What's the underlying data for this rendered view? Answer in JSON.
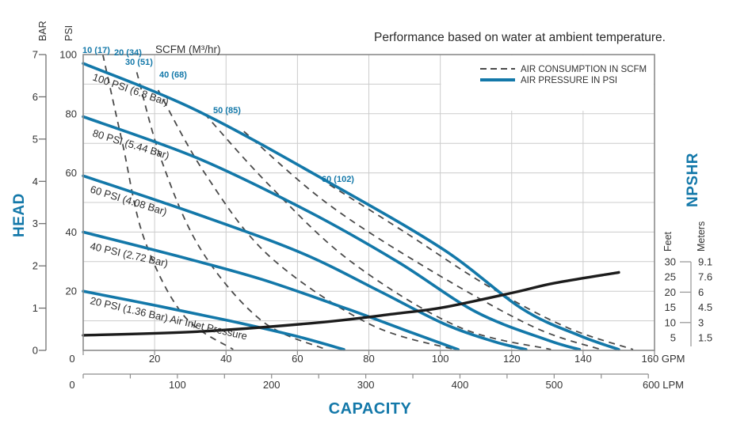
{
  "title": "Performance based on water at ambient temperature.",
  "legend": {
    "consumption_label": "AIR CONSUMPTION IN SCFM",
    "pressure_label": "AIR PRESSURE IN PSI"
  },
  "axes": {
    "head_label": "HEAD",
    "capacity_label": "CAPACITY",
    "bar": {
      "label": "BAR",
      "ticks": [
        0,
        1,
        2,
        3,
        4,
        5,
        6,
        7
      ]
    },
    "psi": {
      "label": "PSI",
      "ticks": [
        20,
        40,
        60,
        80,
        100
      ]
    },
    "gpm": {
      "ticks": [
        "0",
        "20",
        "40",
        "60",
        "80",
        "100",
        "120",
        "140"
      ],
      "last_label": "160 GPM"
    },
    "lpm": {
      "ticks": [
        "0",
        "100",
        "200",
        "300",
        "400",
        "500"
      ],
      "last_label": "600 LPM"
    },
    "npshr": {
      "label": "NPSHR",
      "feet_label": "Feet",
      "meters_label": "Meters",
      "feet": [
        "30",
        "25",
        "20",
        "15",
        "10",
        "5"
      ],
      "meters": [
        "9.1",
        "7.6",
        "6",
        "4.5",
        "3",
        "1.5"
      ]
    },
    "scfm_header": "SCFM (M³/hr)"
  },
  "chart_data": {
    "type": "line",
    "x_unit": "GPM",
    "x_unit_secondary": "LPM",
    "y_unit_left": [
      "BAR",
      "PSI"
    ],
    "y_unit_right_npshr": [
      "Feet",
      "Meters"
    ],
    "xlim_gpm": [
      0,
      160
    ],
    "xlim_lpm": [
      0,
      600
    ],
    "ylim_psi": [
      0,
      100
    ],
    "ylim_bar": [
      0,
      7
    ],
    "npshr_feet_scale": [
      5,
      30
    ],
    "grid": true,
    "legend_position": "top-right",
    "colors": {
      "pressure": "#1378a9",
      "consumption": "#4a4a4a",
      "npshr": "#1c1c1c",
      "grid": "#cccccc",
      "border": "#8c8c8c",
      "accent_text": "#1378a9"
    },
    "pressure_curves": [
      {
        "label": "100 PSI (6.8 Bar)",
        "points_gpm_psi": [
          [
            0,
            97
          ],
          [
            32,
            81
          ],
          [
            70,
            56
          ],
          [
            101,
            34
          ],
          [
            123,
            14
          ],
          [
            139,
            5
          ],
          [
            150,
            0.3
          ]
        ]
      },
      {
        "label": "80 PSI (5.44 Bar)",
        "points_gpm_psi": [
          [
            0,
            79
          ],
          [
            32,
            65
          ],
          [
            63,
            47
          ],
          [
            88,
            30
          ],
          [
            110,
            13
          ],
          [
            130,
            3.5
          ],
          [
            139,
            0.3
          ]
        ]
      },
      {
        "label": "60 PSI (4.08 Bar)",
        "points_gpm_psi": [
          [
            0,
            59
          ],
          [
            32,
            46
          ],
          [
            61,
            33
          ],
          [
            83,
            20
          ],
          [
            101,
            9
          ],
          [
            115,
            3
          ],
          [
            124,
            0.3
          ]
        ]
      },
      {
        "label": "40 PSI (2.72 Bar)",
        "points_gpm_psi": [
          [
            0,
            40
          ],
          [
            26,
            32
          ],
          [
            50,
            24
          ],
          [
            74,
            14
          ],
          [
            92,
            6
          ],
          [
            105,
            0.3
          ]
        ]
      },
      {
        "label": "20 PSI (1.36 Bar) Air Inlet Pressure",
        "points_gpm_psi": [
          [
            0,
            20
          ],
          [
            21,
            15
          ],
          [
            41,
            10
          ],
          [
            59,
            5
          ],
          [
            73,
            0.3
          ]
        ]
      }
    ],
    "consumption_curves": [
      {
        "label": "10 (17)",
        "points_gpm_psi": [
          [
            5.5,
            100
          ],
          [
            11,
            70
          ],
          [
            17,
            38
          ],
          [
            28,
            12
          ],
          [
            42,
            0.3
          ]
        ]
      },
      {
        "label": "20 (34)",
        "points_gpm_psi": [
          [
            15,
            94
          ],
          [
            22,
            64
          ],
          [
            33,
            34
          ],
          [
            50,
            10
          ],
          [
            68,
            0.3
          ]
        ]
      },
      {
        "label": "30 (51)",
        "points_gpm_psi": [
          [
            21,
            88
          ],
          [
            34,
            60
          ],
          [
            52,
            32
          ],
          [
            80,
            9
          ],
          [
            104,
            0.3
          ]
        ]
      },
      {
        "label": "40 (68)",
        "points_gpm_psi": [
          [
            34,
            80
          ],
          [
            52,
            56
          ],
          [
            75,
            30
          ],
          [
            105,
            8
          ],
          [
            131,
            0.3
          ]
        ]
      },
      {
        "label": "50 (85)",
        "points_gpm_psi": [
          [
            45,
            74
          ],
          [
            68,
            50
          ],
          [
            96,
            28
          ],
          [
            126,
            8
          ],
          [
            145,
            0.3
          ]
        ]
      },
      {
        "label": "60 (102)",
        "points_gpm_psi": [
          [
            69,
            56
          ],
          [
            90,
            40
          ],
          [
            113,
            22
          ],
          [
            135,
            8
          ],
          [
            154,
            0.3
          ]
        ]
      }
    ],
    "npshr_curve": {
      "points_gpm_feet": [
        [
          0,
          5.8
        ],
        [
          32,
          7
        ],
        [
          66,
          10
        ],
        [
          88,
          13
        ],
        [
          101,
          15
        ],
        [
          121,
          20
        ],
        [
          132,
          23
        ],
        [
          150,
          26.5
        ]
      ]
    }
  }
}
